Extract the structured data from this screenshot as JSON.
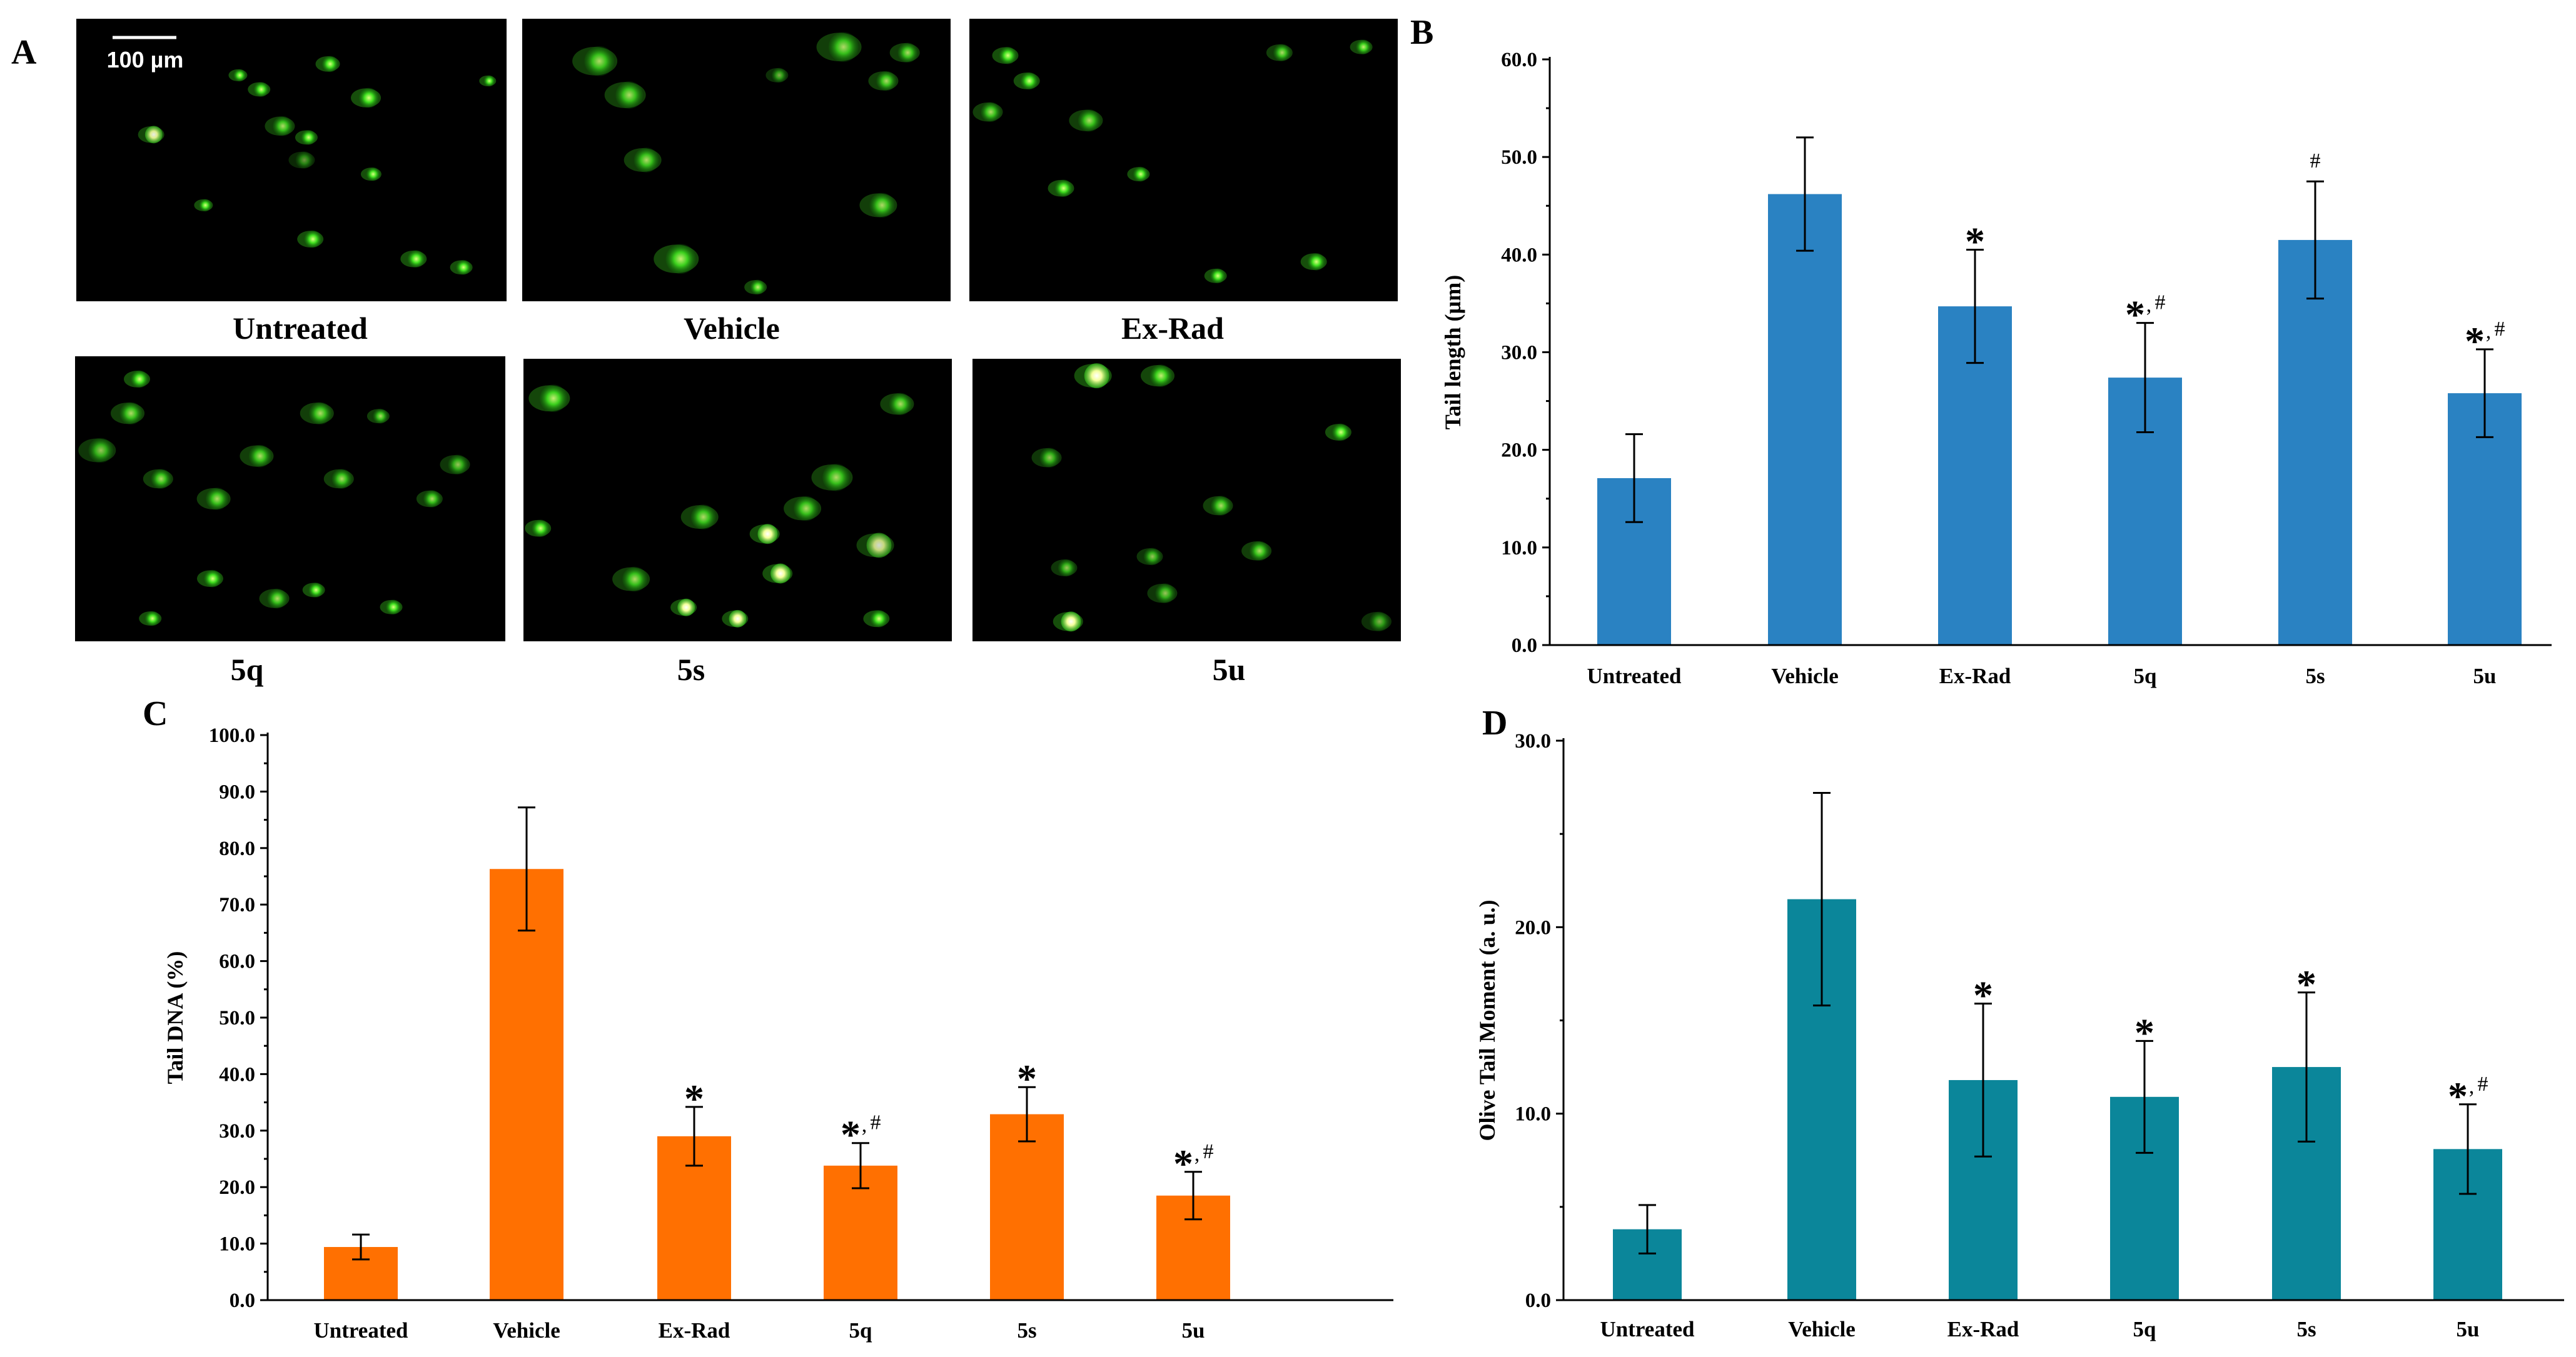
{
  "panels": {
    "a": "A",
    "b": "B",
    "c": "C",
    "d": "D"
  },
  "micrographs": {
    "scale_bar": "100 µm",
    "images": [
      {
        "label": "Untreated"
      },
      {
        "label": "Vehicle"
      },
      {
        "label": "Ex-Rad"
      },
      {
        "label": "5q"
      },
      {
        "label": "5s"
      },
      {
        "label": "5u"
      }
    ]
  },
  "colors": {
    "panel_b_bar": "#2a82c2",
    "panel_c_bar": "#ff7001",
    "panel_d_bar": "#0b869a",
    "micrograph_background": "#000000",
    "comet": "#3fe01f"
  },
  "chart_data": [
    {
      "id": "B",
      "type": "bar",
      "categories": [
        "Untreated",
        "Vehicle",
        "Ex-Rad",
        "5q",
        "5s",
        "5u"
      ],
      "values": [
        17.1,
        46.2,
        34.7,
        27.4,
        41.5,
        25.8
      ],
      "errors": [
        4.5,
        5.8,
        5.8,
        5.6,
        6.0,
        4.5
      ],
      "significance": [
        {
          "star": "",
          "hash": ""
        },
        {
          "star": "",
          "hash": ""
        },
        {
          "star": "*",
          "hash": ""
        },
        {
          "star": "*",
          "hash": "#"
        },
        {
          "star": "",
          "hash": "#"
        },
        {
          "star": "*",
          "hash": "#"
        }
      ],
      "ylabel": "Tail length  (µm)",
      "ylim": [
        0,
        60
      ],
      "yticks": [
        "0.0",
        "10.0",
        "20.0",
        "30.0",
        "40.0",
        "50.0",
        "60.0"
      ],
      "grid": false
    },
    {
      "id": "C",
      "type": "bar",
      "categories": [
        "Untreated",
        "Vehicle",
        "Ex-Rad",
        "5q",
        "5s",
        "5u"
      ],
      "values": [
        9.4,
        76.3,
        29.0,
        23.8,
        32.9,
        18.5
      ],
      "errors": [
        2.2,
        10.9,
        5.2,
        4.0,
        4.8,
        4.2
      ],
      "significance": [
        {
          "star": "",
          "hash": ""
        },
        {
          "star": "",
          "hash": ""
        },
        {
          "star": "*",
          "hash": ""
        },
        {
          "star": "*",
          "hash": "#"
        },
        {
          "star": "*",
          "hash": ""
        },
        {
          "star": "*",
          "hash": "#"
        }
      ],
      "ylabel": "Tail  DNA  (%)",
      "ylim": [
        0,
        100
      ],
      "yticks": [
        "0.0",
        "10.0",
        "20.0",
        "30.0",
        "40.0",
        "50.0",
        "60.0",
        "70.0",
        "80.0",
        "90.0",
        "100.0"
      ],
      "grid": false
    },
    {
      "id": "D",
      "type": "bar",
      "categories": [
        "Untreated",
        "Vehicle",
        "Ex-Rad",
        "5q",
        "5s",
        "5u"
      ],
      "values": [
        3.8,
        21.5,
        11.8,
        10.9,
        12.5,
        8.1
      ],
      "errors": [
        1.3,
        5.7,
        4.1,
        3.0,
        4.0,
        2.4
      ],
      "significance": [
        {
          "star": "",
          "hash": ""
        },
        {
          "star": "",
          "hash": ""
        },
        {
          "star": "*",
          "hash": ""
        },
        {
          "star": "*",
          "hash": ""
        },
        {
          "star": "*",
          "hash": ""
        },
        {
          "star": "*",
          "hash": "#"
        }
      ],
      "ylabel": "Olive Tail Moment (a. u.)",
      "ylim": [
        0,
        30
      ],
      "yticks": [
        "0.0",
        "10.0",
        "20.0",
        "30.0"
      ],
      "grid": false
    }
  ]
}
